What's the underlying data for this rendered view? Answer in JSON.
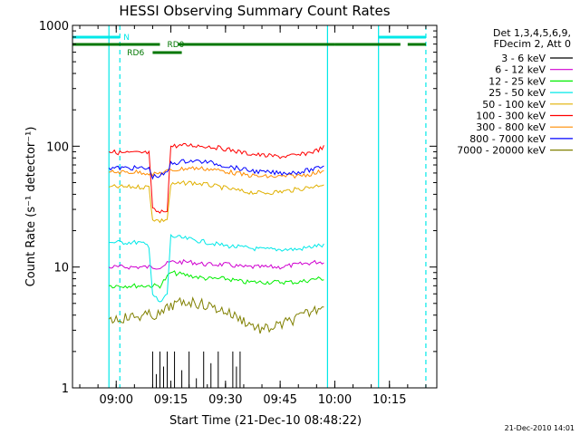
{
  "chart_data": {
    "type": "line",
    "title": "HESSI Observing Summary Count Rates",
    "xlabel": "Start Time (21-Dec-10 08:48:22)",
    "ylabel": "Count Rate (s⁻¹ detector⁻¹)",
    "yscale": "log",
    "ylim": [
      1,
      1000
    ],
    "xlim": [
      "08:48",
      "10:28"
    ],
    "x_ticks": [
      "09:00",
      "09:15",
      "09:30",
      "09:45",
      "10:00",
      "10:15"
    ],
    "y_ticks": [
      "1",
      "10",
      "100",
      "1000"
    ],
    "legend_header": [
      "Det 1,3,4,5,6,9,",
      "FDecim 2, Att 0"
    ],
    "legend_position": "right, outside",
    "series": [
      {
        "name": "3 - 6 keV",
        "color": "#000000",
        "points": [
          [
            "09:09",
            1
          ],
          [
            "09:10",
            2
          ],
          [
            "09:11",
            1.3
          ],
          [
            "09:12",
            2
          ],
          [
            "09:13",
            1.5
          ],
          [
            "09:14",
            2
          ],
          [
            "09:15",
            1
          ],
          [
            "09:16",
            2
          ],
          [
            "09:18",
            1.4
          ],
          [
            "09:20",
            2
          ],
          [
            "09:22",
            1.2
          ],
          [
            "09:24",
            2
          ],
          [
            "09:26",
            1.6
          ],
          [
            "09:28",
            2
          ],
          [
            "09:30",
            1.1
          ],
          [
            "09:32",
            2
          ],
          [
            "09:33",
            1.5
          ],
          [
            "09:34",
            2
          ]
        ]
      },
      {
        "name": "6 - 12 keV",
        "color": "#d000d0",
        "points": [
          [
            "08:58",
            10
          ],
          [
            "09:02",
            10
          ],
          [
            "09:06",
            10
          ],
          [
            "09:09",
            10
          ],
          [
            "09:12",
            10
          ],
          [
            "09:15",
            11
          ],
          [
            "09:20",
            11
          ],
          [
            "09:25",
            10.5
          ],
          [
            "09:30",
            10.5
          ],
          [
            "09:35",
            10
          ],
          [
            "09:40",
            10
          ],
          [
            "09:45",
            10
          ],
          [
            "09:50",
            10.5
          ],
          [
            "09:55",
            11
          ],
          [
            "09:57",
            11
          ]
        ]
      },
      {
        "name": "12 - 25 keV",
        "color": "#00ee00",
        "points": [
          [
            "08:58",
            7
          ],
          [
            "09:02",
            7
          ],
          [
            "09:06",
            7
          ],
          [
            "09:09",
            7
          ],
          [
            "09:12",
            7
          ],
          [
            "09:15",
            9
          ],
          [
            "09:20",
            8.5
          ],
          [
            "09:25",
            8
          ],
          [
            "09:30",
            8
          ],
          [
            "09:35",
            7.5
          ],
          [
            "09:40",
            7.5
          ],
          [
            "09:45",
            7.5
          ],
          [
            "09:50",
            7.5
          ],
          [
            "09:55",
            8
          ],
          [
            "09:57",
            8
          ]
        ]
      },
      {
        "name": "25 - 50 keV",
        "color": "#00e8e8",
        "points": [
          [
            "08:58",
            16
          ],
          [
            "09:02",
            16
          ],
          [
            "09:06",
            16
          ],
          [
            "09:09",
            15
          ],
          [
            "09:10",
            6
          ],
          [
            "09:12",
            5
          ],
          [
            "09:14",
            6
          ],
          [
            "09:15",
            18
          ],
          [
            "09:20",
            17
          ],
          [
            "09:25",
            16
          ],
          [
            "09:30",
            15
          ],
          [
            "09:35",
            14.5
          ],
          [
            "09:40",
            14
          ],
          [
            "09:45",
            14
          ],
          [
            "09:50",
            14
          ],
          [
            "09:55",
            15
          ],
          [
            "09:57",
            15
          ]
        ]
      },
      {
        "name": "50 - 100 keV",
        "color": "#e0b000",
        "points": [
          [
            "08:58",
            46
          ],
          [
            "09:02",
            46
          ],
          [
            "09:06",
            46
          ],
          [
            "09:09",
            46
          ],
          [
            "09:10",
            25
          ],
          [
            "09:12",
            24
          ],
          [
            "09:14",
            25
          ],
          [
            "09:15",
            48
          ],
          [
            "09:20",
            50
          ],
          [
            "09:25",
            48
          ],
          [
            "09:30",
            45
          ],
          [
            "09:35",
            42
          ],
          [
            "09:40",
            41
          ],
          [
            "09:45",
            42
          ],
          [
            "09:50",
            44
          ],
          [
            "09:55",
            47
          ],
          [
            "09:57",
            49
          ]
        ]
      },
      {
        "name": "100 - 300 keV",
        "color": "#ff0000",
        "points": [
          [
            "08:58",
            90
          ],
          [
            "09:02",
            88
          ],
          [
            "09:06",
            88
          ],
          [
            "09:09",
            88
          ],
          [
            "09:10",
            30
          ],
          [
            "09:12",
            28
          ],
          [
            "09:14",
            30
          ],
          [
            "09:15",
            100
          ],
          [
            "09:20",
            102
          ],
          [
            "09:25",
            100
          ],
          [
            "09:30",
            95
          ],
          [
            "09:35",
            88
          ],
          [
            "09:40",
            84
          ],
          [
            "09:45",
            82
          ],
          [
            "09:50",
            84
          ],
          [
            "09:55",
            92
          ],
          [
            "09:57",
            98
          ]
        ]
      },
      {
        "name": "300 - 800 keV",
        "color": "#ff8c00",
        "points": [
          [
            "08:58",
            61
          ],
          [
            "09:02",
            61
          ],
          [
            "09:06",
            61
          ],
          [
            "09:09",
            60
          ],
          [
            "09:10",
            58
          ],
          [
            "09:12",
            60
          ],
          [
            "09:14",
            62
          ],
          [
            "09:15",
            63
          ],
          [
            "09:20",
            66
          ],
          [
            "09:25",
            65
          ],
          [
            "09:30",
            62
          ],
          [
            "09:35",
            58
          ],
          [
            "09:40",
            56
          ],
          [
            "09:45",
            56
          ],
          [
            "09:50",
            57
          ],
          [
            "09:55",
            60
          ],
          [
            "09:57",
            64
          ]
        ]
      },
      {
        "name": "800 - 7000 keV",
        "color": "#0000ff",
        "points": [
          [
            "08:58",
            66
          ],
          [
            "09:02",
            66
          ],
          [
            "09:06",
            66
          ],
          [
            "09:09",
            65
          ],
          [
            "09:10",
            56
          ],
          [
            "09:12",
            57
          ],
          [
            "09:14",
            60
          ],
          [
            "09:15",
            72
          ],
          [
            "09:20",
            76
          ],
          [
            "09:25",
            74
          ],
          [
            "09:30",
            69
          ],
          [
            "09:35",
            64
          ],
          [
            "09:40",
            61
          ],
          [
            "09:45",
            60
          ],
          [
            "09:50",
            61
          ],
          [
            "09:55",
            65
          ],
          [
            "09:57",
            70
          ]
        ]
      },
      {
        "name": "7000 - 20000 keV",
        "color": "#808000",
        "points": [
          [
            "08:58",
            3.7
          ],
          [
            "09:02",
            3.8
          ],
          [
            "09:06",
            3.9
          ],
          [
            "09:09",
            4
          ],
          [
            "09:12",
            4
          ],
          [
            "09:15",
            4.8
          ],
          [
            "09:20",
            5.2
          ],
          [
            "09:25",
            4.8
          ],
          [
            "09:30",
            4.3
          ],
          [
            "09:35",
            3.6
          ],
          [
            "09:40",
            3
          ],
          [
            "09:45",
            3.3
          ],
          [
            "09:50",
            3.8
          ],
          [
            "09:55",
            4.5
          ],
          [
            "09:57",
            5
          ]
        ]
      }
    ],
    "orbit_bars": [
      {
        "label": "N",
        "color": "#00e8e8",
        "intervals": [
          [
            "08:48",
            "09:01"
          ],
          [
            "10:12",
            "10:25"
          ]
        ]
      },
      {
        "label": "RD0",
        "color": "#007700",
        "intervals": [
          [
            "08:48",
            "09:12"
          ],
          [
            "09:17",
            "10:00"
          ],
          [
            "10:00",
            "10:18"
          ],
          [
            "10:20",
            "10:25"
          ]
        ]
      },
      {
        "label": "RD6",
        "color": "#007700",
        "intervals": [
          [
            "09:10",
            "09:18"
          ]
        ]
      }
    ],
    "vlines_solid": [
      "08:58",
      "09:58",
      "10:12"
    ],
    "vlines_dashed": [
      "09:01",
      "10:25"
    ]
  },
  "footer": {
    "timestamp": "21-Dec-2010 14:01"
  }
}
